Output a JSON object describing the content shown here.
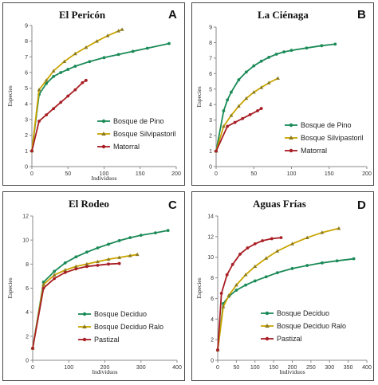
{
  "chart_data": [
    {
      "type": "line",
      "title": "El Pericón",
      "panel_letter": "A",
      "xlabel": "Individuos",
      "ylabel": "Especies",
      "xlim": [
        0,
        200
      ],
      "ylim": [
        0,
        9
      ],
      "xticks": [
        "0",
        "50",
        "100",
        "150",
        "200"
      ],
      "yticks": [
        "0",
        "1",
        "2",
        "3",
        "4",
        "5",
        "6",
        "7",
        "8",
        "9"
      ],
      "legend": "bottom-right",
      "series": [
        {
          "name": "Bosque de Pino",
          "color": "#1a8a57",
          "marker": "circle",
          "x": [
            0,
            10,
            20,
            30,
            40,
            50,
            60,
            80,
            100,
            120,
            140,
            160,
            190
          ],
          "y": [
            1,
            4.6,
            5.3,
            5.75,
            6.0,
            6.2,
            6.4,
            6.7,
            6.95,
            7.15,
            7.35,
            7.55,
            7.85
          ]
        },
        {
          "name": "Bosque Silvipastoril",
          "color": "#c9a400",
          "marker": "triangle",
          "x": [
            0,
            10,
            20,
            30,
            45,
            60,
            75,
            90,
            105,
            120,
            125
          ],
          "y": [
            1,
            4.9,
            5.5,
            6.1,
            6.7,
            7.2,
            7.6,
            8.0,
            8.35,
            8.65,
            8.75
          ]
        },
        {
          "name": "Matorral",
          "color": "#a81e24",
          "marker": "circle",
          "x": [
            0,
            10,
            20,
            30,
            40,
            50,
            60,
            70,
            75
          ],
          "y": [
            1,
            2.9,
            3.3,
            3.7,
            4.1,
            4.5,
            4.9,
            5.35,
            5.5
          ]
        }
      ]
    },
    {
      "type": "line",
      "title": "La Ciénaga",
      "panel_letter": "B",
      "xlabel": "",
      "ylabel": "Especies",
      "xlim": [
        0,
        200
      ],
      "ylim": [
        0,
        9
      ],
      "xticks": [
        "0",
        "50",
        "100",
        "150",
        "200"
      ],
      "yticks": [
        "0",
        "1",
        "2",
        "3",
        "4",
        "5",
        "6",
        "7",
        "8",
        "9"
      ],
      "legend": "bottom-right",
      "series": [
        {
          "name": "Bosque de Pino",
          "color": "#1a8a57",
          "marker": "circle",
          "x": [
            0,
            10,
            15,
            20,
            30,
            40,
            50,
            60,
            70,
            80,
            90,
            100,
            120,
            140,
            158
          ],
          "y": [
            1,
            3.6,
            4.3,
            4.8,
            5.6,
            6.1,
            6.5,
            6.8,
            7.05,
            7.25,
            7.4,
            7.5,
            7.65,
            7.8,
            7.9
          ]
        },
        {
          "name": "Bosque Silvipastoril",
          "color": "#c9a400",
          "marker": "triangle",
          "x": [
            0,
            10,
            20,
            30,
            40,
            50,
            60,
            70,
            82
          ],
          "y": [
            1,
            2.6,
            3.3,
            3.9,
            4.4,
            4.8,
            5.1,
            5.4,
            5.7
          ]
        },
        {
          "name": "Matorral",
          "color": "#a81e24",
          "marker": "circle",
          "x": [
            0,
            15,
            25,
            35,
            45,
            55,
            60
          ],
          "y": [
            1,
            2.6,
            2.85,
            3.1,
            3.35,
            3.6,
            3.75
          ]
        }
      ]
    },
    {
      "type": "line",
      "title": "El Rodeo",
      "panel_letter": "C",
      "xlabel": "Individuos",
      "ylabel": "Especies",
      "xlim": [
        0,
        400
      ],
      "ylim": [
        0,
        12
      ],
      "xticks": [
        "0",
        "100",
        "200",
        "300",
        "400"
      ],
      "yticks": [
        "0",
        "2",
        "4",
        "6",
        "8",
        "10",
        "12"
      ],
      "legend": "bottom-right",
      "series": [
        {
          "name": "Bosque Deciduo",
          "color": "#1a8a57",
          "marker": "circle",
          "x": [
            0,
            30,
            60,
            90,
            120,
            150,
            180,
            210,
            240,
            270,
            300,
            340,
            375
          ],
          "y": [
            1,
            6.5,
            7.4,
            8.1,
            8.6,
            9.0,
            9.35,
            9.65,
            9.95,
            10.2,
            10.4,
            10.6,
            10.8
          ]
        },
        {
          "name": "Bosque Deciduo Ralo",
          "color": "#c9a400",
          "marker": "triangle",
          "x": [
            0,
            30,
            60,
            90,
            120,
            150,
            180,
            210,
            240,
            270,
            290
          ],
          "y": [
            1,
            6.3,
            7.1,
            7.5,
            7.8,
            8.0,
            8.2,
            8.4,
            8.55,
            8.7,
            8.8
          ]
        },
        {
          "name": "Pastizal",
          "color": "#a81e24",
          "marker": "circle",
          "x": [
            0,
            30,
            60,
            90,
            120,
            150,
            180,
            210,
            240
          ],
          "y": [
            1,
            6.0,
            6.8,
            7.3,
            7.6,
            7.8,
            7.9,
            8.0,
            8.05
          ]
        }
      ]
    },
    {
      "type": "line",
      "title": "Aguas Frías",
      "panel_letter": "D",
      "xlabel": "Individuos",
      "ylabel": "Especies",
      "xlim": [
        0,
        400
      ],
      "ylim": [
        0,
        14
      ],
      "xticks": [
        "0",
        "50",
        "100",
        "150",
        "200",
        "250",
        "300",
        "350",
        "400"
      ],
      "yticks": [
        "0",
        "2",
        "4",
        "6",
        "8",
        "10",
        "12",
        "14"
      ],
      "legend": "bottom-right",
      "series": [
        {
          "name": "Bosque Deciduo",
          "color": "#1a8a57",
          "marker": "circle",
          "x": [
            0,
            15,
            30,
            50,
            75,
            100,
            130,
            160,
            200,
            240,
            280,
            320,
            365
          ],
          "y": [
            1,
            5.5,
            6.2,
            6.8,
            7.3,
            7.7,
            8.1,
            8.5,
            8.9,
            9.2,
            9.45,
            9.65,
            9.85
          ]
        },
        {
          "name": "Bosque Deciduo Ralo",
          "color": "#c9a400",
          "marker": "triangle",
          "x": [
            0,
            15,
            30,
            50,
            75,
            100,
            130,
            160,
            200,
            240,
            280,
            325
          ],
          "y": [
            1,
            5.2,
            6.3,
            7.3,
            8.3,
            9.1,
            9.9,
            10.6,
            11.3,
            11.9,
            12.4,
            12.8
          ]
        },
        {
          "name": "Pastizal",
          "color": "#a81e24",
          "marker": "circle",
          "x": [
            0,
            10,
            25,
            40,
            60,
            80,
            100,
            120,
            145,
            170
          ],
          "y": [
            1,
            6.5,
            8.3,
            9.3,
            10.3,
            10.9,
            11.3,
            11.6,
            11.8,
            11.9
          ]
        }
      ]
    }
  ]
}
